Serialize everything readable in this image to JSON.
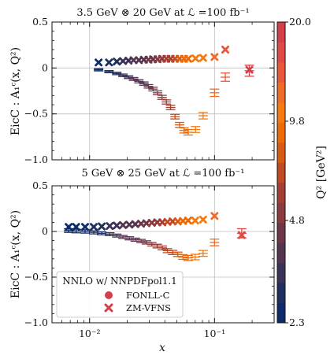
{
  "chart_data": [
    {
      "type": "scatter",
      "title": "3.5 GeV ⊗ 20 GeV at ℒ =100 fb⁻¹",
      "ylabel": "EicC : A₁ᶜ(x, Q²)",
      "xscale": "log",
      "xlim": [
        0.005,
        0.3
      ],
      "ylim": [
        -1.0,
        0.5
      ],
      "ytick_labels": [
        "0.5",
        "0",
        "−0.5",
        "−1.0"
      ],
      "ytick_values": [
        0.5,
        0,
        -0.5,
        -1.0
      ],
      "grid": true,
      "series": [
        {
          "name": "FONLL-C",
          "marker": "errorbar-circle",
          "points": [
            {
              "x": 0.0118,
              "y": -0.02,
              "err": 0.012,
              "q2": 2.6
            },
            {
              "x": 0.0143,
              "y": -0.04,
              "err": 0.012,
              "q2": 2.8
            },
            {
              "x": 0.0165,
              "y": -0.06,
              "err": 0.013,
              "q2": 3.0
            },
            {
              "x": 0.0185,
              "y": -0.08,
              "err": 0.014,
              "q2": 3.2
            },
            {
              "x": 0.0205,
              "y": -0.1,
              "err": 0.015,
              "q2": 3.4
            },
            {
              "x": 0.0225,
              "y": -0.12,
              "err": 0.016,
              "q2": 3.6
            },
            {
              "x": 0.0248,
              "y": -0.145,
              "err": 0.017,
              "q2": 3.8
            },
            {
              "x": 0.0272,
              "y": -0.17,
              "err": 0.018,
              "q2": 4.0
            },
            {
              "x": 0.0296,
              "y": -0.2,
              "err": 0.019,
              "q2": 4.2
            },
            {
              "x": 0.0322,
              "y": -0.23,
              "err": 0.02,
              "q2": 4.5
            },
            {
              "x": 0.035,
              "y": -0.27,
              "err": 0.021,
              "q2": 4.8
            },
            {
              "x": 0.038,
              "y": -0.32,
              "err": 0.022,
              "q2": 5.2
            },
            {
              "x": 0.0412,
              "y": -0.37,
              "err": 0.023,
              "q2": 5.7
            },
            {
              "x": 0.0445,
              "y": -0.43,
              "err": 0.024,
              "q2": 6.3
            },
            {
              "x": 0.0483,
              "y": -0.53,
              "err": 0.025,
              "q2": 7.0
            },
            {
              "x": 0.0525,
              "y": -0.62,
              "err": 0.027,
              "q2": 7.8
            },
            {
              "x": 0.057,
              "y": -0.68,
              "err": 0.028,
              "q2": 8.6
            },
            {
              "x": 0.0615,
              "y": -0.7,
              "err": 0.03,
              "q2": 9.3
            },
            {
              "x": 0.0705,
              "y": -0.67,
              "err": 0.032,
              "q2": 10.2
            },
            {
              "x": 0.081,
              "y": -0.52,
              "err": 0.035,
              "q2": 11.2
            },
            {
              "x": 0.1,
              "y": -0.27,
              "err": 0.04,
              "q2": 12.5
            },
            {
              "x": 0.122,
              "y": -0.1,
              "err": 0.045,
              "q2": 14.0
            },
            {
              "x": 0.19,
              "y": -0.03,
              "err": 0.06,
              "q2": 18.5
            }
          ]
        },
        {
          "name": "ZM-VFNS",
          "marker": "x",
          "points": [
            {
              "x": 0.0118,
              "y": 0.06,
              "q2": 2.6
            },
            {
              "x": 0.0143,
              "y": 0.06,
              "q2": 2.8
            },
            {
              "x": 0.0165,
              "y": 0.07,
              "q2": 3.0
            },
            {
              "x": 0.0185,
              "y": 0.075,
              "q2": 3.2
            },
            {
              "x": 0.0205,
              "y": 0.08,
              "q2": 3.4
            },
            {
              "x": 0.0225,
              "y": 0.085,
              "q2": 3.6
            },
            {
              "x": 0.0248,
              "y": 0.085,
              "q2": 3.8
            },
            {
              "x": 0.0272,
              "y": 0.09,
              "q2": 4.0
            },
            {
              "x": 0.0296,
              "y": 0.09,
              "q2": 4.2
            },
            {
              "x": 0.0322,
              "y": 0.095,
              "q2": 4.5
            },
            {
              "x": 0.035,
              "y": 0.095,
              "q2": 4.8
            },
            {
              "x": 0.038,
              "y": 0.1,
              "q2": 5.2
            },
            {
              "x": 0.0412,
              "y": 0.1,
              "q2": 5.7
            },
            {
              "x": 0.0445,
              "y": 0.1,
              "q2": 6.3
            },
            {
              "x": 0.0483,
              "y": 0.1,
              "q2": 7.0
            },
            {
              "x": 0.0525,
              "y": 0.1,
              "q2": 7.8
            },
            {
              "x": 0.057,
              "y": 0.1,
              "q2": 8.6
            },
            {
              "x": 0.0615,
              "y": 0.1,
              "q2": 9.3
            },
            {
              "x": 0.0705,
              "y": 0.105,
              "q2": 10.2
            },
            {
              "x": 0.081,
              "y": 0.11,
              "q2": 11.2
            },
            {
              "x": 0.1,
              "y": 0.12,
              "q2": 12.5
            },
            {
              "x": 0.122,
              "y": 0.2,
              "q2": 14.0
            },
            {
              "x": 0.19,
              "y": -0.02,
              "q2": 18.5
            }
          ]
        }
      ]
    },
    {
      "type": "scatter",
      "title": "5 GeV ⊗ 25 GeV at ℒ =100 fb⁻¹",
      "ylabel": "EicC : A₁ᶜ(x, Q²)",
      "xlabel": "x",
      "xscale": "log",
      "xlim": [
        0.005,
        0.3
      ],
      "ylim": [
        -1.0,
        0.5
      ],
      "ytick_labels": [
        "0.5",
        "0",
        "−0.5",
        "−1.0"
      ],
      "ytick_values": [
        0.5,
        0,
        -0.5,
        -1.0
      ],
      "xtick_labels": [
        "10⁻²",
        "10⁻¹"
      ],
      "xtick_values": [
        0.01,
        0.1
      ],
      "grid": true,
      "legend": {
        "title": "NNLO w/ NNPDFpol1.1",
        "position": "lower-left",
        "entries": [
          "FONLL-C",
          "ZM-VFNS"
        ]
      },
      "series": [
        {
          "name": "FONLL-C",
          "marker": "errorbar-circle",
          "points": [
            {
              "x": 0.0068,
              "y": 0.01,
              "err": 0.02,
              "q2": 2.4
            },
            {
              "x": 0.0078,
              "y": 0.005,
              "err": 0.02,
              "q2": 2.5
            },
            {
              "x": 0.0092,
              "y": 0.0,
              "err": 0.018,
              "q2": 2.6
            },
            {
              "x": 0.0108,
              "y": -0.01,
              "err": 0.017,
              "q2": 2.8
            },
            {
              "x": 0.0125,
              "y": -0.02,
              "err": 0.016,
              "q2": 3.0
            },
            {
              "x": 0.0145,
              "y": -0.03,
              "err": 0.016,
              "q2": 3.2
            },
            {
              "x": 0.0165,
              "y": -0.045,
              "err": 0.016,
              "q2": 3.4
            },
            {
              "x": 0.0185,
              "y": -0.06,
              "err": 0.016,
              "q2": 3.6
            },
            {
              "x": 0.0208,
              "y": -0.075,
              "err": 0.017,
              "q2": 3.8
            },
            {
              "x": 0.0232,
              "y": -0.09,
              "err": 0.017,
              "q2": 4.0
            },
            {
              "x": 0.0258,
              "y": -0.105,
              "err": 0.018,
              "q2": 4.3
            },
            {
              "x": 0.0285,
              "y": -0.12,
              "err": 0.018,
              "q2": 4.6
            },
            {
              "x": 0.0315,
              "y": -0.14,
              "err": 0.019,
              "q2": 5.0
            },
            {
              "x": 0.0348,
              "y": -0.16,
              "err": 0.02,
              "q2": 5.4
            },
            {
              "x": 0.0382,
              "y": -0.18,
              "err": 0.021,
              "q2": 5.9
            },
            {
              "x": 0.042,
              "y": -0.21,
              "err": 0.022,
              "q2": 6.5
            },
            {
              "x": 0.0462,
              "y": -0.23,
              "err": 0.023,
              "q2": 7.1
            },
            {
              "x": 0.0508,
              "y": -0.25,
              "err": 0.024,
              "q2": 7.8
            },
            {
              "x": 0.0558,
              "y": -0.28,
              "err": 0.026,
              "q2": 8.6
            },
            {
              "x": 0.0615,
              "y": -0.29,
              "err": 0.028,
              "q2": 9.4
            },
            {
              "x": 0.07,
              "y": -0.28,
              "err": 0.03,
              "q2": 10.3
            },
            {
              "x": 0.081,
              "y": -0.24,
              "err": 0.032,
              "q2": 11.2
            },
            {
              "x": 0.1,
              "y": -0.12,
              "err": 0.036,
              "q2": 12.5
            },
            {
              "x": 0.165,
              "y": -0.02,
              "err": 0.05,
              "q2": 17.0
            }
          ]
        },
        {
          "name": "ZM-VFNS",
          "marker": "x",
          "points": [
            {
              "x": 0.0068,
              "y": 0.05,
              "q2": 2.4
            },
            {
              "x": 0.0078,
              "y": 0.05,
              "q2": 2.5
            },
            {
              "x": 0.0092,
              "y": 0.05,
              "q2": 2.6
            },
            {
              "x": 0.0108,
              "y": 0.05,
              "q2": 2.8
            },
            {
              "x": 0.0125,
              "y": 0.055,
              "q2": 3.0
            },
            {
              "x": 0.0145,
              "y": 0.06,
              "q2": 3.2
            },
            {
              "x": 0.0165,
              "y": 0.065,
              "q2": 3.4
            },
            {
              "x": 0.0185,
              "y": 0.07,
              "q2": 3.6
            },
            {
              "x": 0.0208,
              "y": 0.075,
              "q2": 3.8
            },
            {
              "x": 0.0232,
              "y": 0.08,
              "q2": 4.0
            },
            {
              "x": 0.0258,
              "y": 0.085,
              "q2": 4.3
            },
            {
              "x": 0.0285,
              "y": 0.09,
              "q2": 4.6
            },
            {
              "x": 0.0315,
              "y": 0.095,
              "q2": 5.0
            },
            {
              "x": 0.0348,
              "y": 0.1,
              "q2": 5.4
            },
            {
              "x": 0.0382,
              "y": 0.1,
              "q2": 5.9
            },
            {
              "x": 0.042,
              "y": 0.105,
              "q2": 6.5
            },
            {
              "x": 0.0462,
              "y": 0.11,
              "q2": 7.1
            },
            {
              "x": 0.0508,
              "y": 0.11,
              "q2": 7.8
            },
            {
              "x": 0.0558,
              "y": 0.115,
              "q2": 8.6
            },
            {
              "x": 0.0615,
              "y": 0.12,
              "q2": 9.4
            },
            {
              "x": 0.07,
              "y": 0.12,
              "q2": 10.3
            },
            {
              "x": 0.081,
              "y": 0.13,
              "q2": 11.2
            },
            {
              "x": 0.1,
              "y": 0.17,
              "q2": 12.5
            },
            {
              "x": 0.165,
              "y": -0.04,
              "q2": 17.0
            }
          ]
        }
      ]
    }
  ],
  "colorbar": {
    "label": "Q² [GeV²]",
    "tick_labels": [
      "2.3",
      "4.8",
      "9.8",
      "20.0"
    ],
    "tick_values": [
      2.3,
      4.8,
      9.8,
      20.0
    ],
    "range": [
      2.3,
      20.0
    ],
    "scale": "log",
    "colors": [
      "#0d2a6b",
      "#1f2f5f",
      "#3a3258",
      "#55344f",
      "#6e3747",
      "#8a3b3f",
      "#a53f33",
      "#c04a22",
      "#d95a12",
      "#ee6a05",
      "#f57a10",
      "#f06a28",
      "#e8573a",
      "#df4a45",
      "#d43f4a"
    ]
  }
}
